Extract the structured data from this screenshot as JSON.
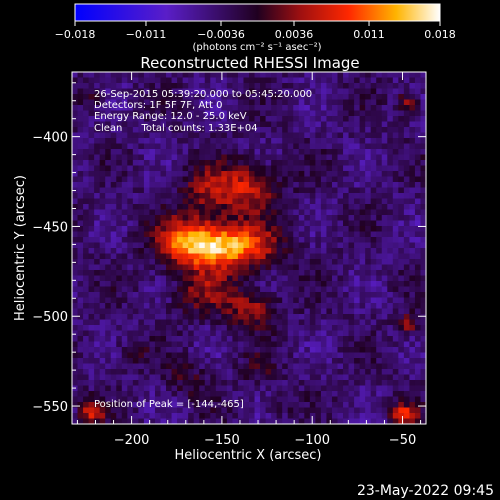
{
  "chart_data": {
    "type": "heatmap",
    "title": "Reconstructed RHESSI Image",
    "xlabel": "Heliocentric X (arcsec)",
    "ylabel": "Heliocentric Y (arcsec)",
    "xlim": [
      -233,
      -37
    ],
    "ylim": [
      -560,
      -364
    ],
    "xticks": [
      -200,
      -150,
      -100,
      -50
    ],
    "yticks": [
      -550,
      -500,
      -450,
      -400
    ],
    "xtick_labels": [
      "−200",
      "−150",
      "−100",
      "−50"
    ],
    "ytick_labels": [
      "−550",
      "−500",
      "−450",
      "−400"
    ],
    "colorbar": {
      "min": -0.018,
      "max": 0.018,
      "ticks": [
        -0.018,
        -0.011,
        -0.0036,
        0.0036,
        0.011,
        0.018
      ],
      "tick_labels": [
        "−0.018",
        "−0.011",
        "−0.0036",
        "0.0036",
        "0.011",
        "0.018"
      ],
      "unit": "(photons cm⁻² s⁻¹ asec⁻²)",
      "colormap": "blue-purple-red-yellow-white"
    },
    "annotations": [
      "26-Sep-2015 05:39:20.000 to 05:45:20.000",
      "Detectors: 1F 5F 7F, Att 0",
      "Energy Range: 12.0 - 25.0 keV",
      "Clean      Total counts: 1.33E+04"
    ],
    "peak_label": "Position of Peak = [-144,-465]",
    "peak": [
      -144,
      -465
    ],
    "sources": [
      {
        "x": -148,
        "y": -461,
        "amp": 0.018,
        "sx": 18,
        "sy": 9
      },
      {
        "x": -170,
        "y": -458,
        "amp": 0.01,
        "sx": 12,
        "sy": 9
      },
      {
        "x": -137,
        "y": -428,
        "amp": 0.01,
        "sx": 13,
        "sy": 10
      },
      {
        "x": -160,
        "y": -432,
        "amp": 0.006,
        "sx": 10,
        "sy": 9
      },
      {
        "x": -133,
        "y": -496,
        "amp": 0.009,
        "sx": 9,
        "sy": 7
      },
      {
        "x": -160,
        "y": -487,
        "amp": 0.006,
        "sx": 13,
        "sy": 9
      },
      {
        "x": -168,
        "y": -535,
        "amp": 0.004,
        "sx": 8,
        "sy": 7
      },
      {
        "x": -130,
        "y": -530,
        "amp": 0.003,
        "sx": 8,
        "sy": 6
      },
      {
        "x": -49,
        "y": -555,
        "amp": 0.012,
        "sx": 5,
        "sy": 4
      },
      {
        "x": -222,
        "y": -553,
        "amp": 0.01,
        "sx": 5,
        "sy": 5
      },
      {
        "x": -47,
        "y": -381,
        "amp": 0.008,
        "sx": 4,
        "sy": 5
      },
      {
        "x": -47,
        "y": -505,
        "amp": 0.008,
        "sx": 4,
        "sy": 4
      },
      {
        "x": -120,
        "y": -550,
        "amp": 0.004,
        "sx": 5,
        "sy": 4
      },
      {
        "x": -222,
        "y": -378,
        "amp": 0.004,
        "sx": 5,
        "sy": 5
      },
      {
        "x": -200,
        "y": -520,
        "amp": 0.003,
        "sx": 7,
        "sy": 6
      }
    ],
    "background": {
      "level": -0.004,
      "noise": 0.0025
    },
    "timestamp": "23-May-2022 09:45"
  }
}
